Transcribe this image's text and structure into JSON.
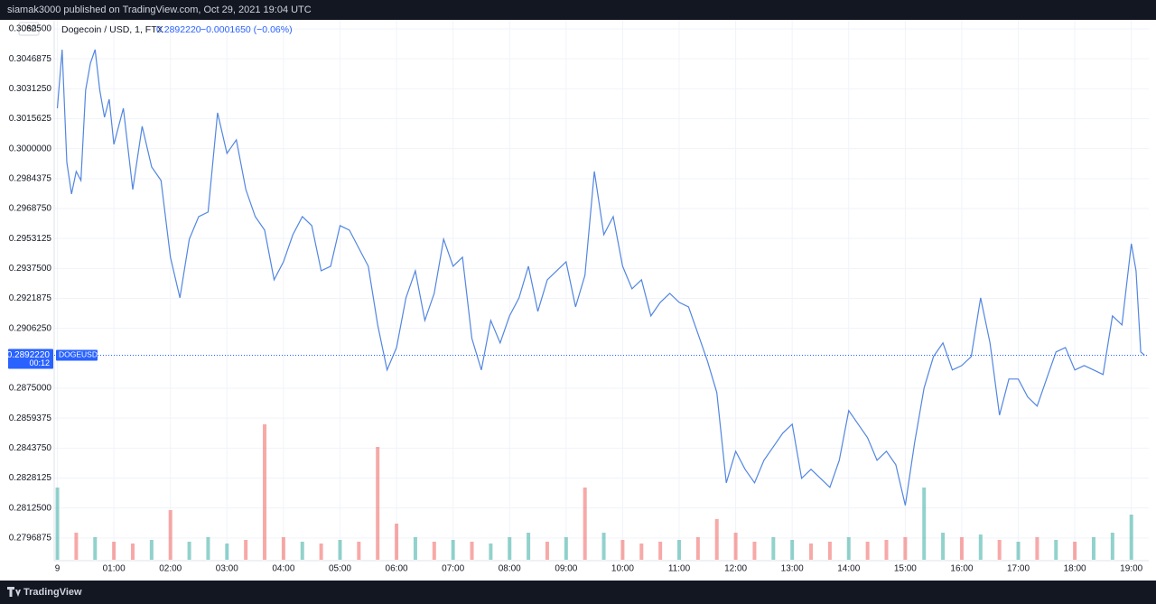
{
  "header": {
    "publisher": "siamak3000 published on TradingView.com, Oct 29, 2021 19:04 UTC",
    "brand": "TradingView"
  },
  "chart_data": {
    "type": "line",
    "currency": "USD",
    "title": "Dogecoin / USD, 1, FTX",
    "last": {
      "value": 0.289222,
      "label": "0.2892220"
    },
    "change": "−0.0001650 (−0.06%)",
    "countdown": "00:12",
    "grid": true,
    "x": [
      0,
      5,
      10,
      15,
      20,
      25,
      30,
      35,
      40,
      45,
      50,
      55,
      60,
      70,
      80,
      90,
      100,
      110,
      120,
      130,
      140,
      150,
      160,
      170,
      180,
      190,
      200,
      210,
      220,
      230,
      240,
      250,
      260,
      270,
      280,
      290,
      300,
      310,
      320,
      330,
      340,
      350,
      360,
      370,
      380,
      390,
      400,
      410,
      420,
      430,
      440,
      450,
      460,
      470,
      480,
      490,
      500,
      510,
      520,
      530,
      540,
      550,
      560,
      570,
      580,
      590,
      600,
      610,
      620,
      630,
      640,
      650,
      660,
      670,
      680,
      690,
      700,
      710,
      720,
      730,
      740,
      750,
      760,
      770,
      780,
      790,
      800,
      810,
      820,
      830,
      840,
      850,
      860,
      870,
      880,
      890,
      900,
      910,
      920,
      930,
      940,
      950,
      960,
      970,
      980,
      990,
      1000,
      1010,
      1020,
      1030,
      1040,
      1050,
      1060,
      1070,
      1080,
      1090,
      1100,
      1110,
      1120,
      1130,
      1140,
      1145,
      1150,
      1154
    ],
    "series": [
      {
        "name": "DOGEUSD",
        "color": "#5286e0",
        "values": [
          0.302106,
          0.305167,
          0.299281,
          0.297633,
          0.29881,
          0.298339,
          0.303048,
          0.304461,
          0.305167,
          0.303048,
          0.301635,
          0.302577,
          0.300222,
          0.302106,
          0.297868,
          0.301164,
          0.299045,
          0.298339,
          0.294336,
          0.292217,
          0.295278,
          0.296455,
          0.296691,
          0.301871,
          0.299752,
          0.300458,
          0.297868,
          0.296455,
          0.295749,
          0.293159,
          0.294101,
          0.295513,
          0.296455,
          0.295984,
          0.29363,
          0.293865,
          0.295984,
          0.295749,
          0.294807,
          0.293865,
          0.290804,
          0.28845,
          0.289627,
          0.292217,
          0.29363,
          0.29104,
          0.292453,
          0.295278,
          0.293865,
          0.294336,
          0.290098,
          0.28845,
          0.29104,
          0.289863,
          0.291275,
          0.292217,
          0.293865,
          0.291511,
          0.293159,
          0.29363,
          0.294101,
          0.291746,
          0.293394,
          0.29881,
          0.295513,
          0.296455,
          0.293865,
          0.292688,
          0.293159,
          0.291275,
          0.291982,
          0.292453,
          0.291982,
          0.291746,
          0.290334,
          0.288921,
          0.287273,
          0.282564,
          0.284212,
          0.28327,
          0.282564,
          0.283741,
          0.284447,
          0.285154,
          0.285625,
          0.282799,
          0.28327,
          0.282799,
          0.282328,
          0.283741,
          0.286331,
          0.285625,
          0.284918,
          0.283741,
          0.284212,
          0.283506,
          0.281386,
          0.284683,
          0.287508,
          0.289156,
          0.289863,
          0.28845,
          0.288685,
          0.289156,
          0.292217,
          0.289863,
          0.286095,
          0.287979,
          0.287979,
          0.287037,
          0.286566,
          0.287979,
          0.289392,
          0.289627,
          0.28845,
          0.288685,
          0.28845,
          0.288215,
          0.291275,
          0.290804,
          0.295043,
          0.29363,
          0.289392,
          0.289222
        ]
      }
    ],
    "volume": {
      "up_color": "rgba(38,166,154,0.5)",
      "down_color": "rgba(239,83,80,0.5)",
      "x": [
        0,
        20,
        40,
        60,
        80,
        100,
        120,
        140,
        160,
        180,
        200,
        220,
        240,
        260,
        280,
        300,
        320,
        340,
        360,
        380,
        400,
        420,
        440,
        460,
        480,
        500,
        520,
        540,
        560,
        580,
        600,
        620,
        640,
        660,
        680,
        700,
        720,
        740,
        760,
        780,
        800,
        820,
        840,
        860,
        880,
        900,
        920,
        940,
        960,
        980,
        1000,
        1020,
        1040,
        1060,
        1080,
        1100,
        1120,
        1140
      ],
      "values": [
        80,
        30,
        25,
        20,
        18,
        22,
        55,
        20,
        25,
        18,
        22,
        150,
        25,
        20,
        18,
        22,
        20,
        125,
        40,
        25,
        20,
        22,
        20,
        18,
        25,
        30,
        20,
        25,
        80,
        30,
        22,
        18,
        20,
        22,
        25,
        45,
        30,
        20,
        25,
        22,
        18,
        20,
        25,
        20,
        22,
        25,
        80,
        30,
        25,
        28,
        22,
        20,
        25,
        22,
        20,
        25,
        30,
        50
      ]
    },
    "xlim": [
      -3.4,
      1158.5
    ],
    "ylim": [
      0.27855,
      0.30672
    ],
    "xticks": [
      {
        "value": 0,
        "label": "9"
      },
      {
        "value": 60,
        "label": "01:00"
      },
      {
        "value": 120,
        "label": "02:00"
      },
      {
        "value": 180,
        "label": "03:00"
      },
      {
        "value": 240,
        "label": "04:00"
      },
      {
        "value": 300,
        "label": "05:00"
      },
      {
        "value": 360,
        "label": "06:00"
      },
      {
        "value": 420,
        "label": "07:00"
      },
      {
        "value": 480,
        "label": "08:00"
      },
      {
        "value": 540,
        "label": "09:00"
      },
      {
        "value": 600,
        "label": "10:00"
      },
      {
        "value": 660,
        "label": "11:00"
      },
      {
        "value": 720,
        "label": "12:00"
      },
      {
        "value": 780,
        "label": "13:00"
      },
      {
        "value": 840,
        "label": "14:00"
      },
      {
        "value": 900,
        "label": "15:00"
      },
      {
        "value": 960,
        "label": "16:00"
      },
      {
        "value": 1020,
        "label": "17:00"
      },
      {
        "value": 1080,
        "label": "18:00"
      },
      {
        "value": 1140,
        "label": "19:00"
      }
    ],
    "yticks": [
      {
        "value": 0.30625,
        "label": "0.3062500"
      },
      {
        "value": 0.3046875,
        "label": "0.3046875"
      },
      {
        "value": 0.303125,
        "label": "0.3031250"
      },
      {
        "value": 0.3015625,
        "label": "0.3015625"
      },
      {
        "value": 0.3,
        "label": "0.3000000"
      },
      {
        "value": 0.2984375,
        "label": "0.2984375"
      },
      {
        "value": 0.296875,
        "label": "0.2968750"
      },
      {
        "value": 0.2953125,
        "label": "0.2953125"
      },
      {
        "value": 0.29375,
        "label": "0.2937500"
      },
      {
        "value": 0.2921875,
        "label": "0.2921875"
      },
      {
        "value": 0.290625,
        "label": "0.2906250"
      },
      {
        "value": 0.2875,
        "label": "0.2875000"
      },
      {
        "value": 0.2859375,
        "label": "0.2859375"
      },
      {
        "value": 0.284375,
        "label": "0.2843750"
      },
      {
        "value": 0.2828125,
        "label": "0.2828125"
      },
      {
        "value": 0.28125,
        "label": "0.2812500"
      },
      {
        "value": 0.2796875,
        "label": "0.2796875"
      }
    ]
  }
}
